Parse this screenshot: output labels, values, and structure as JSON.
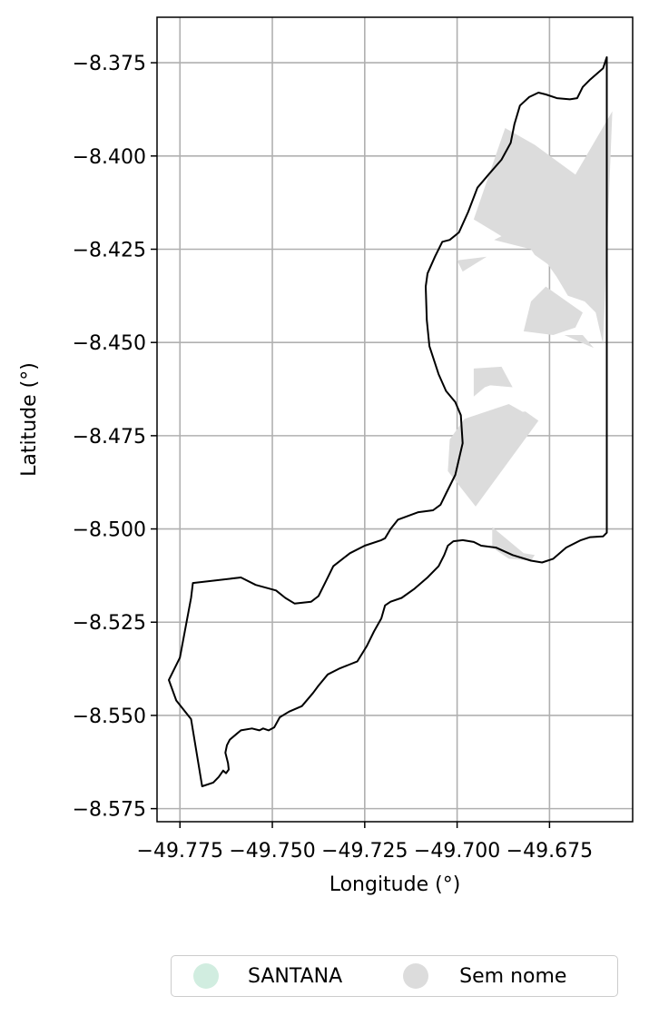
{
  "chart_data": {
    "type": "map",
    "xlabel": "Longitude (°)",
    "ylabel": "Latitude (°)",
    "xlim": [
      -49.7812,
      -49.6525
    ],
    "ylim": [
      -8.5785,
      -8.3628
    ],
    "grid": true,
    "x_ticks": [
      {
        "value": -49.775,
        "label": "−49.775"
      },
      {
        "value": -49.75,
        "label": "−49.750"
      },
      {
        "value": -49.725,
        "label": "−49.725"
      },
      {
        "value": -49.7,
        "label": "−49.700"
      },
      {
        "value": -49.675,
        "label": "−49.675"
      }
    ],
    "y_ticks": [
      {
        "value": -8.375,
        "label": "−8.375"
      },
      {
        "value": -8.4,
        "label": "−8.400"
      },
      {
        "value": -8.425,
        "label": "−8.425"
      },
      {
        "value": -8.45,
        "label": "−8.450"
      },
      {
        "value": -8.475,
        "label": "−8.475"
      },
      {
        "value": -8.5,
        "label": "−8.500"
      },
      {
        "value": -8.525,
        "label": "−8.525"
      },
      {
        "value": -8.55,
        "label": "−8.550"
      },
      {
        "value": -8.575,
        "label": "−8.575"
      }
    ],
    "boundary": [
      [
        -49.6595,
        -8.3735
      ],
      [
        -49.6605,
        -8.3765
      ],
      [
        -49.664,
        -8.3795
      ],
      [
        -49.666,
        -8.3815
      ],
      [
        -49.6675,
        -8.3845
      ],
      [
        -49.6695,
        -8.3848
      ],
      [
        -49.673,
        -8.3845
      ],
      [
        -49.676,
        -8.3835
      ],
      [
        -49.678,
        -8.383
      ],
      [
        -49.6805,
        -8.3842
      ],
      [
        -49.683,
        -8.3865
      ],
      [
        -49.6845,
        -8.3915
      ],
      [
        -49.6855,
        -8.3965
      ],
      [
        -49.688,
        -8.401
      ],
      [
        -49.6915,
        -8.405
      ],
      [
        -49.6945,
        -8.4085
      ],
      [
        -49.697,
        -8.415
      ],
      [
        -49.6995,
        -8.4205
      ],
      [
        -49.702,
        -8.4225
      ],
      [
        -49.704,
        -8.423
      ],
      [
        -49.706,
        -8.427
      ],
      [
        -49.708,
        -8.4315
      ],
      [
        -49.7085,
        -8.435
      ],
      [
        -49.7082,
        -8.444
      ],
      [
        -49.7075,
        -8.451
      ],
      [
        -49.705,
        -8.4585
      ],
      [
        -49.703,
        -8.463
      ],
      [
        -49.7005,
        -8.466
      ],
      [
        -49.699,
        -8.4695
      ],
      [
        -49.6985,
        -8.477
      ],
      [
        -49.7005,
        -8.4855
      ],
      [
        -49.703,
        -8.4905
      ],
      [
        -49.7045,
        -8.4935
      ],
      [
        -49.7065,
        -8.495
      ],
      [
        -49.7105,
        -8.4955
      ],
      [
        -49.716,
        -8.4975
      ],
      [
        -49.718,
        -8.5
      ],
      [
        -49.7195,
        -8.5025
      ],
      [
        -49.7205,
        -8.503
      ],
      [
        -49.725,
        -8.5045
      ],
      [
        -49.729,
        -8.5065
      ],
      [
        -49.7335,
        -8.51
      ],
      [
        -49.7355,
        -8.514
      ],
      [
        -49.7375,
        -8.518
      ],
      [
        -49.7395,
        -8.5195
      ],
      [
        -49.744,
        -8.52
      ],
      [
        -49.7465,
        -8.5185
      ],
      [
        -49.749,
        -8.5165
      ],
      [
        -49.7545,
        -8.515
      ],
      [
        -49.7585,
        -8.513
      ],
      [
        -49.7715,
        -8.5145
      ],
      [
        -49.772,
        -8.5185
      ],
      [
        -49.775,
        -8.5345
      ],
      [
        -49.778,
        -8.5405
      ],
      [
        -49.776,
        -8.546
      ],
      [
        -49.772,
        -8.551
      ],
      [
        -49.769,
        -8.569
      ],
      [
        -49.766,
        -8.568
      ],
      [
        -49.7645,
        -8.5665
      ],
      [
        -49.7633,
        -8.5648
      ],
      [
        -49.7625,
        -8.5655
      ],
      [
        -49.7618,
        -8.5645
      ],
      [
        -49.762,
        -8.5628
      ],
      [
        -49.7627,
        -8.56
      ],
      [
        -49.7623,
        -8.558
      ],
      [
        -49.7615,
        -8.5565
      ],
      [
        -49.7595,
        -8.5548
      ],
      [
        -49.7585,
        -8.554
      ],
      [
        -49.7555,
        -8.5535
      ],
      [
        -49.7535,
        -8.554
      ],
      [
        -49.7525,
        -8.5535
      ],
      [
        -49.751,
        -8.554
      ],
      [
        -49.7495,
        -8.5532
      ],
      [
        -49.748,
        -8.5505
      ],
      [
        -49.7455,
        -8.549
      ],
      [
        -49.742,
        -8.5475
      ],
      [
        -49.739,
        -8.544
      ],
      [
        -49.7375,
        -8.542
      ],
      [
        -49.735,
        -8.539
      ],
      [
        -49.732,
        -8.5375
      ],
      [
        -49.7295,
        -8.5365
      ],
      [
        -49.727,
        -8.5355
      ],
      [
        -49.7245,
        -8.5315
      ],
      [
        -49.7225,
        -8.5275
      ],
      [
        -49.7205,
        -8.524
      ],
      [
        -49.7195,
        -8.5205
      ],
      [
        -49.718,
        -8.5195
      ],
      [
        -49.715,
        -8.5185
      ],
      [
        -49.7115,
        -8.516
      ],
      [
        -49.708,
        -8.513
      ],
      [
        -49.705,
        -8.51
      ],
      [
        -49.7035,
        -8.507
      ],
      [
        -49.7025,
        -8.5045
      ],
      [
        -49.701,
        -8.5033
      ],
      [
        -49.6985,
        -8.503
      ],
      [
        -49.6955,
        -8.5035
      ],
      [
        -49.6935,
        -8.5045
      ],
      [
        -49.6895,
        -8.505
      ],
      [
        -49.685,
        -8.507
      ],
      [
        -49.68,
        -8.5085
      ],
      [
        -49.677,
        -8.509
      ],
      [
        -49.674,
        -8.508
      ],
      [
        -49.6705,
        -8.505
      ],
      [
        -49.6665,
        -8.503
      ],
      [
        -49.664,
        -8.5022
      ],
      [
        -49.6605,
        -8.502
      ],
      [
        -49.6595,
        -8.501
      ],
      [
        -49.6595,
        -8.3735
      ]
    ],
    "series": [
      {
        "name": "SANTANA",
        "color": "#d1ede0"
      },
      {
        "name": "Sem nome",
        "color": "#dcdcdc",
        "polygons": [
          [
            [
              -49.6955,
              -8.417
            ],
            [
              -49.687,
              -8.3925
            ],
            [
              -49.679,
              -8.397
            ],
            [
              -49.668,
              -8.405
            ],
            [
              -49.658,
              -8.388
            ],
            [
              -49.6605,
              -8.4505
            ],
            [
              -49.6625,
              -8.442
            ],
            [
              -49.6655,
              -8.439
            ],
            [
              -49.67,
              -8.4375
            ],
            [
              -49.673,
              -8.4325
            ],
            [
              -49.6755,
              -8.429
            ],
            [
              -49.679,
              -8.4265
            ],
            [
              -49.68,
              -8.425
            ],
            [
              -49.69,
              -8.4225
            ],
            [
              -49.688,
              -8.4215
            ],
            [
              -49.6955,
              -8.417
            ]
          ],
          [
            [
              -49.692,
              -8.427
            ],
            [
              -49.7,
              -8.428
            ],
            [
              -49.6985,
              -8.431
            ],
            [
              -49.692,
              -8.427
            ]
          ],
          [
            [
              -49.676,
              -8.435
            ],
            [
              -49.68,
              -8.439
            ],
            [
              -49.682,
              -8.447
            ],
            [
              -49.674,
              -8.448
            ],
            [
              -49.668,
              -8.446
            ],
            [
              -49.666,
              -8.442
            ],
            [
              -49.676,
              -8.435
            ]
          ],
          [
            [
              -49.671,
              -8.448
            ],
            [
              -49.666,
              -8.448
            ],
            [
              -49.663,
              -8.4515
            ],
            [
              -49.671,
              -8.448
            ]
          ],
          [
            [
              -49.6955,
              -8.457
            ],
            [
              -49.6955,
              -8.4645
            ],
            [
              -49.6925,
              -8.462
            ],
            [
              -49.691,
              -8.4615
            ],
            [
              -49.685,
              -8.462
            ],
            [
              -49.688,
              -8.4565
            ],
            [
              -49.6955,
              -8.457
            ]
          ],
          [
            [
              -49.6955,
              -8.48
            ],
            [
              -49.686,
              -8.474
            ],
            [
              -49.6845,
              -8.475
            ],
            [
              -49.678,
              -8.471
            ],
            [
              -49.6815,
              -8.4685
            ],
            [
              -49.696,
              -8.47
            ],
            [
              -49.698,
              -8.4745
            ],
            [
              -49.696,
              -8.484
            ],
            [
              -49.6955,
              -8.48
            ]
          ],
          [
            [
              -49.698,
              -8.4705
            ],
            [
              -49.697,
              -8.472
            ],
            [
              -49.698,
              -8.4705
            ]
          ],
          [
            [
              -49.695,
              -8.494
            ],
            [
              -49.7025,
              -8.4845
            ],
            [
              -49.702,
              -8.476
            ],
            [
              -49.698,
              -8.4705
            ],
            [
              -49.686,
              -8.4665
            ],
            [
              -49.678,
              -8.471
            ],
            [
              -49.695,
              -8.494
            ]
          ],
          [
            [
              -49.6905,
              -8.4995
            ],
            [
              -49.682,
              -8.5065
            ],
            [
              -49.679,
              -8.507
            ],
            [
              -49.68,
              -8.5085
            ],
            [
              -49.686,
              -8.508
            ],
            [
              -49.6905,
              -8.505
            ],
            [
              -49.6905,
              -8.4995
            ]
          ]
        ]
      }
    ]
  },
  "legend": {
    "items": [
      {
        "label": "SANTANA",
        "color": "#d1ede0"
      },
      {
        "label": "Sem nome",
        "color": "#dcdcdc"
      }
    ]
  }
}
